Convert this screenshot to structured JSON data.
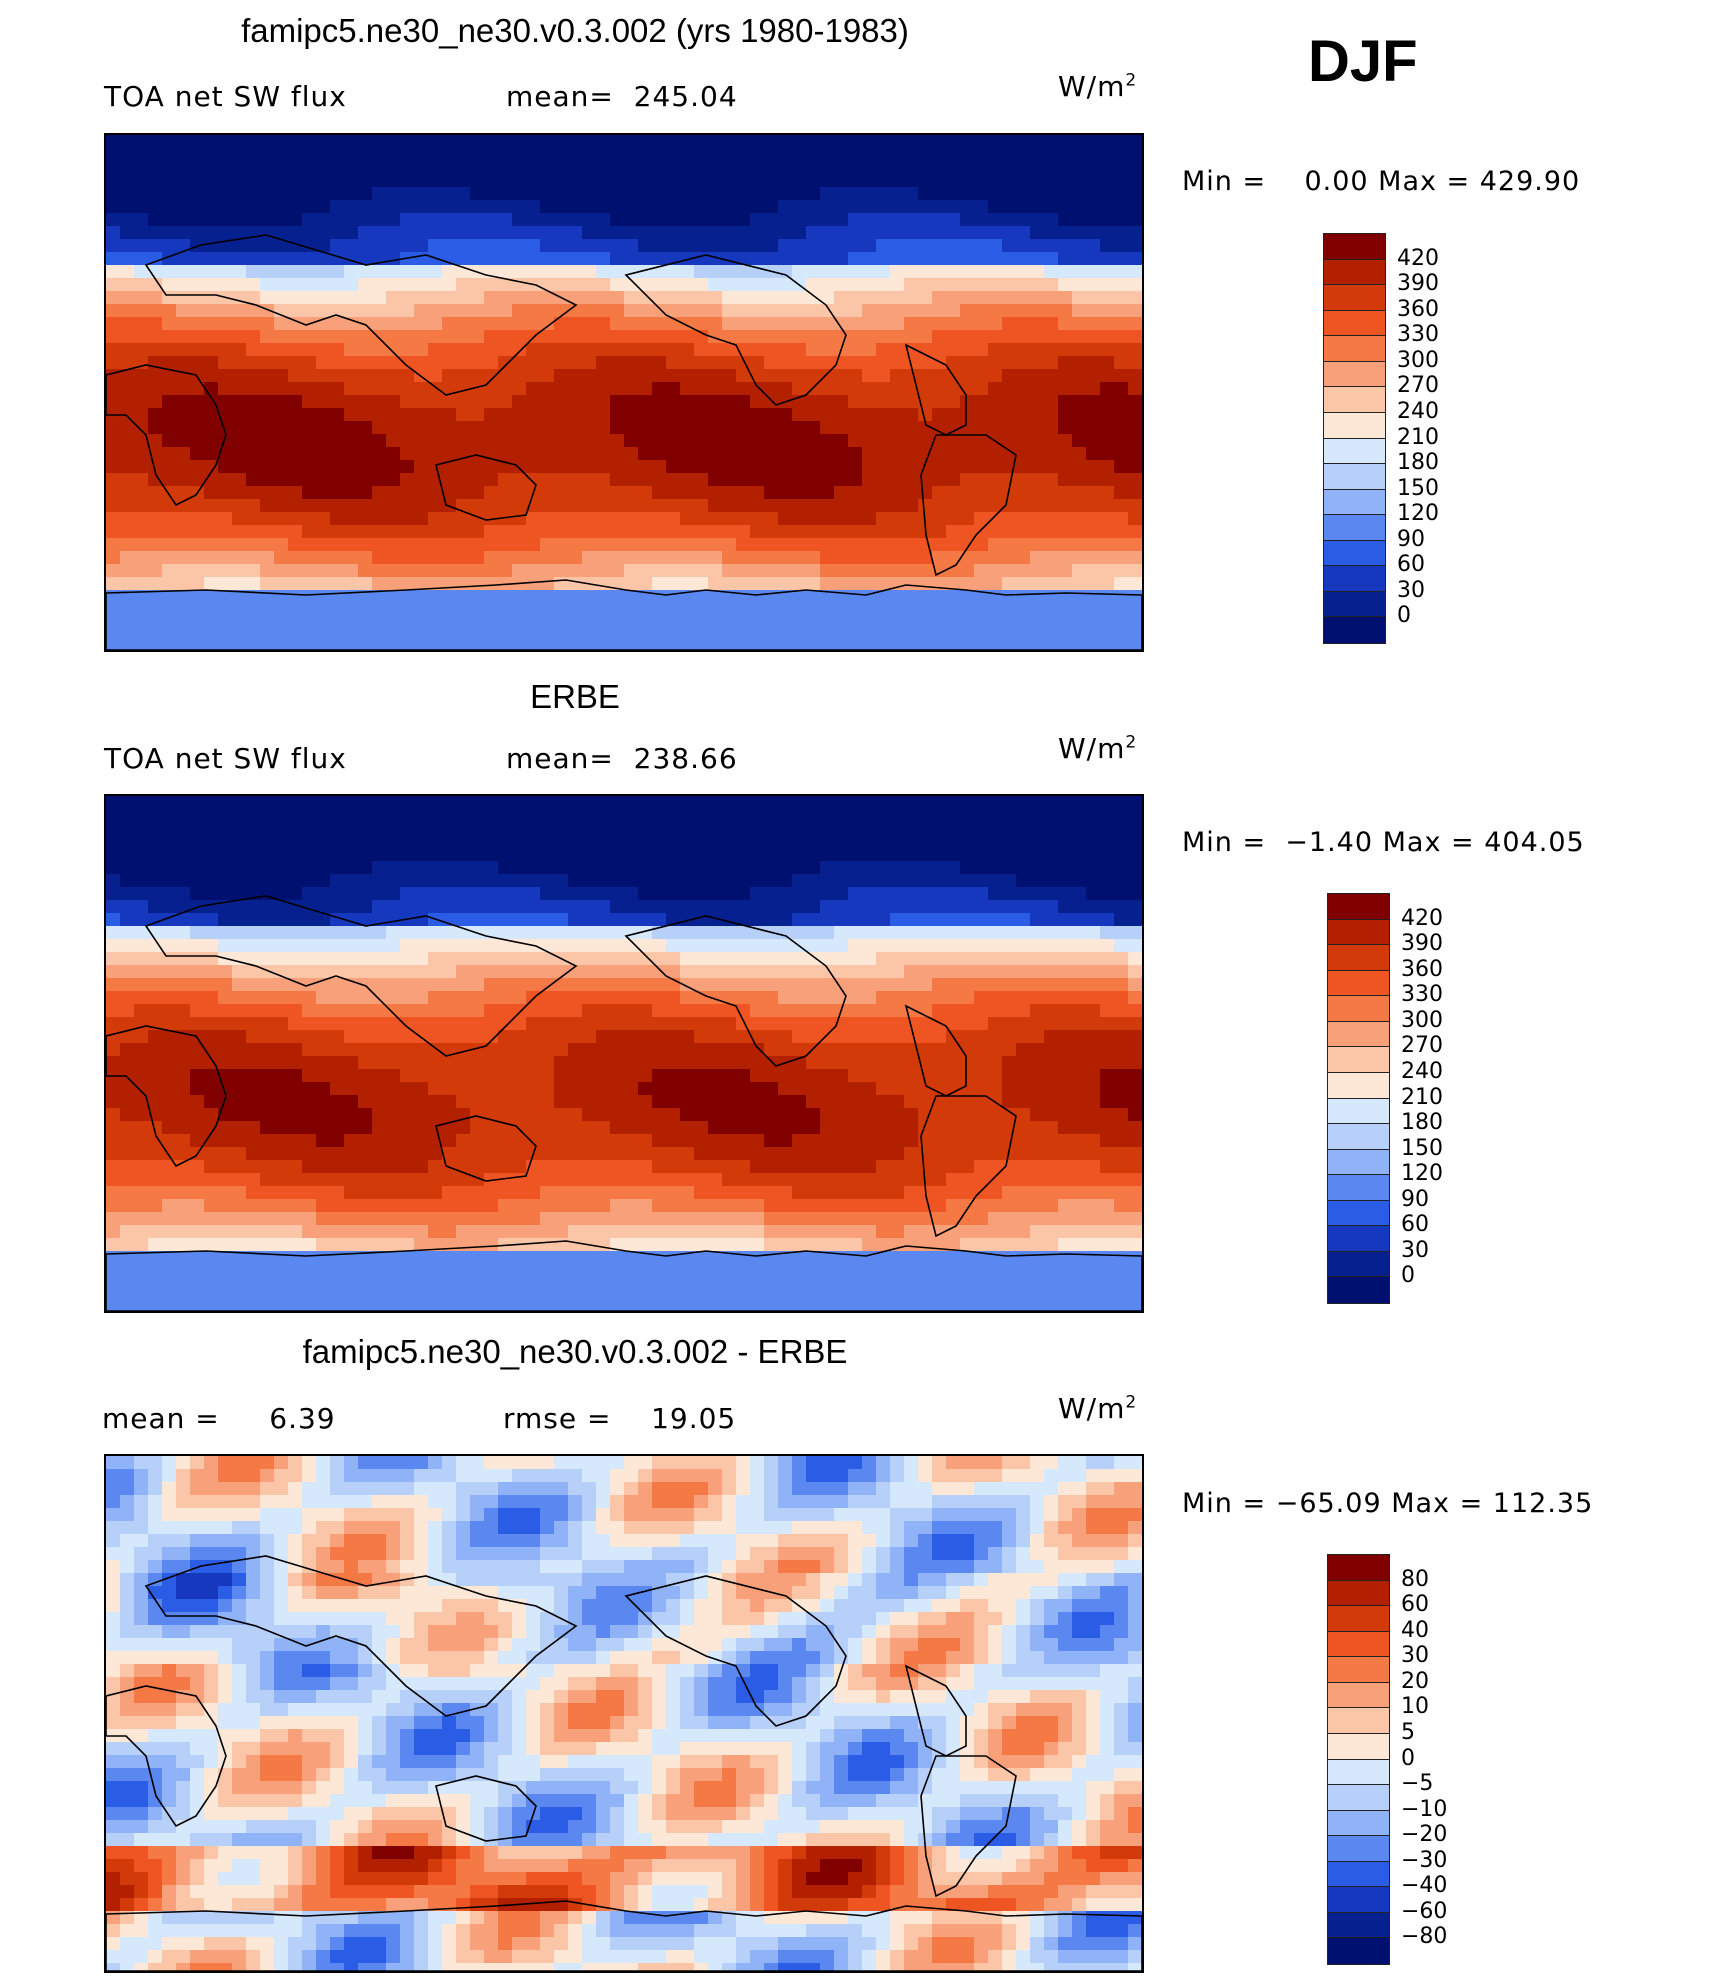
{
  "season": "DJF",
  "panels": [
    {
      "title": "famipc5.ne30_ne30.v0.3.002 (yrs 1980-1983)",
      "left_text": "TOA net SW flux",
      "mid_text": "mean=  245.04",
      "units": "W/m",
      "units_sup": "2",
      "minmax": "Min =    0.00 Max = 429.90",
      "field": "model",
      "colorbar": {
        "ticks": [
          "420",
          "390",
          "360",
          "330",
          "300",
          "270",
          "240",
          "210",
          "180",
          "150",
          "120",
          "90",
          "60",
          "30",
          "0"
        ],
        "colors": [
          "#800000",
          "#b22000",
          "#d23a0a",
          "#ee5522",
          "#f57945",
          "#f8a07a",
          "#fbc6a8",
          "#fde8d8",
          "#d6e8fb",
          "#b6d0fa",
          "#8fb3f6",
          "#5a87f0",
          "#2b5ce6",
          "#1538bf",
          "#06208f",
          "#001070"
        ]
      }
    },
    {
      "title": "ERBE",
      "left_text": "TOA net SW flux",
      "mid_text": "mean=  238.66",
      "units": "W/m",
      "units_sup": "2",
      "minmax": "Min =  −1.40 Max = 404.05",
      "field": "obs",
      "colorbar": {
        "ticks": [
          "420",
          "390",
          "360",
          "330",
          "300",
          "270",
          "240",
          "210",
          "180",
          "150",
          "120",
          "90",
          "60",
          "30",
          "0"
        ],
        "colors": [
          "#800000",
          "#b22000",
          "#d23a0a",
          "#ee5522",
          "#f57945",
          "#f8a07a",
          "#fbc6a8",
          "#fde8d8",
          "#d6e8fb",
          "#b6d0fa",
          "#8fb3f6",
          "#5a87f0",
          "#2b5ce6",
          "#1538bf",
          "#06208f",
          "#001070"
        ]
      }
    },
    {
      "title": "famipc5.ne30_ne30.v0.3.002 - ERBE",
      "left_text": "mean =     6.39",
      "mid_text": "rmse =    19.05",
      "units": "W/m",
      "units_sup": "2",
      "minmax": "Min = −65.09 Max = 112.35",
      "field": "diff",
      "colorbar": {
        "ticks": [
          "80",
          "60",
          "40",
          "30",
          "20",
          "10",
          "5",
          "0",
          "−5",
          "−10",
          "−20",
          "−30",
          "−40",
          "−60",
          "−80"
        ],
        "colors": [
          "#800000",
          "#b22000",
          "#d23a0a",
          "#ee5522",
          "#f57945",
          "#f8a07a",
          "#fbc6a8",
          "#fde8d8",
          "#d6e8fb",
          "#b6d0fa",
          "#8fb3f6",
          "#5a87f0",
          "#2b5ce6",
          "#1538bf",
          "#06208f",
          "#001070"
        ]
      }
    }
  ]
}
